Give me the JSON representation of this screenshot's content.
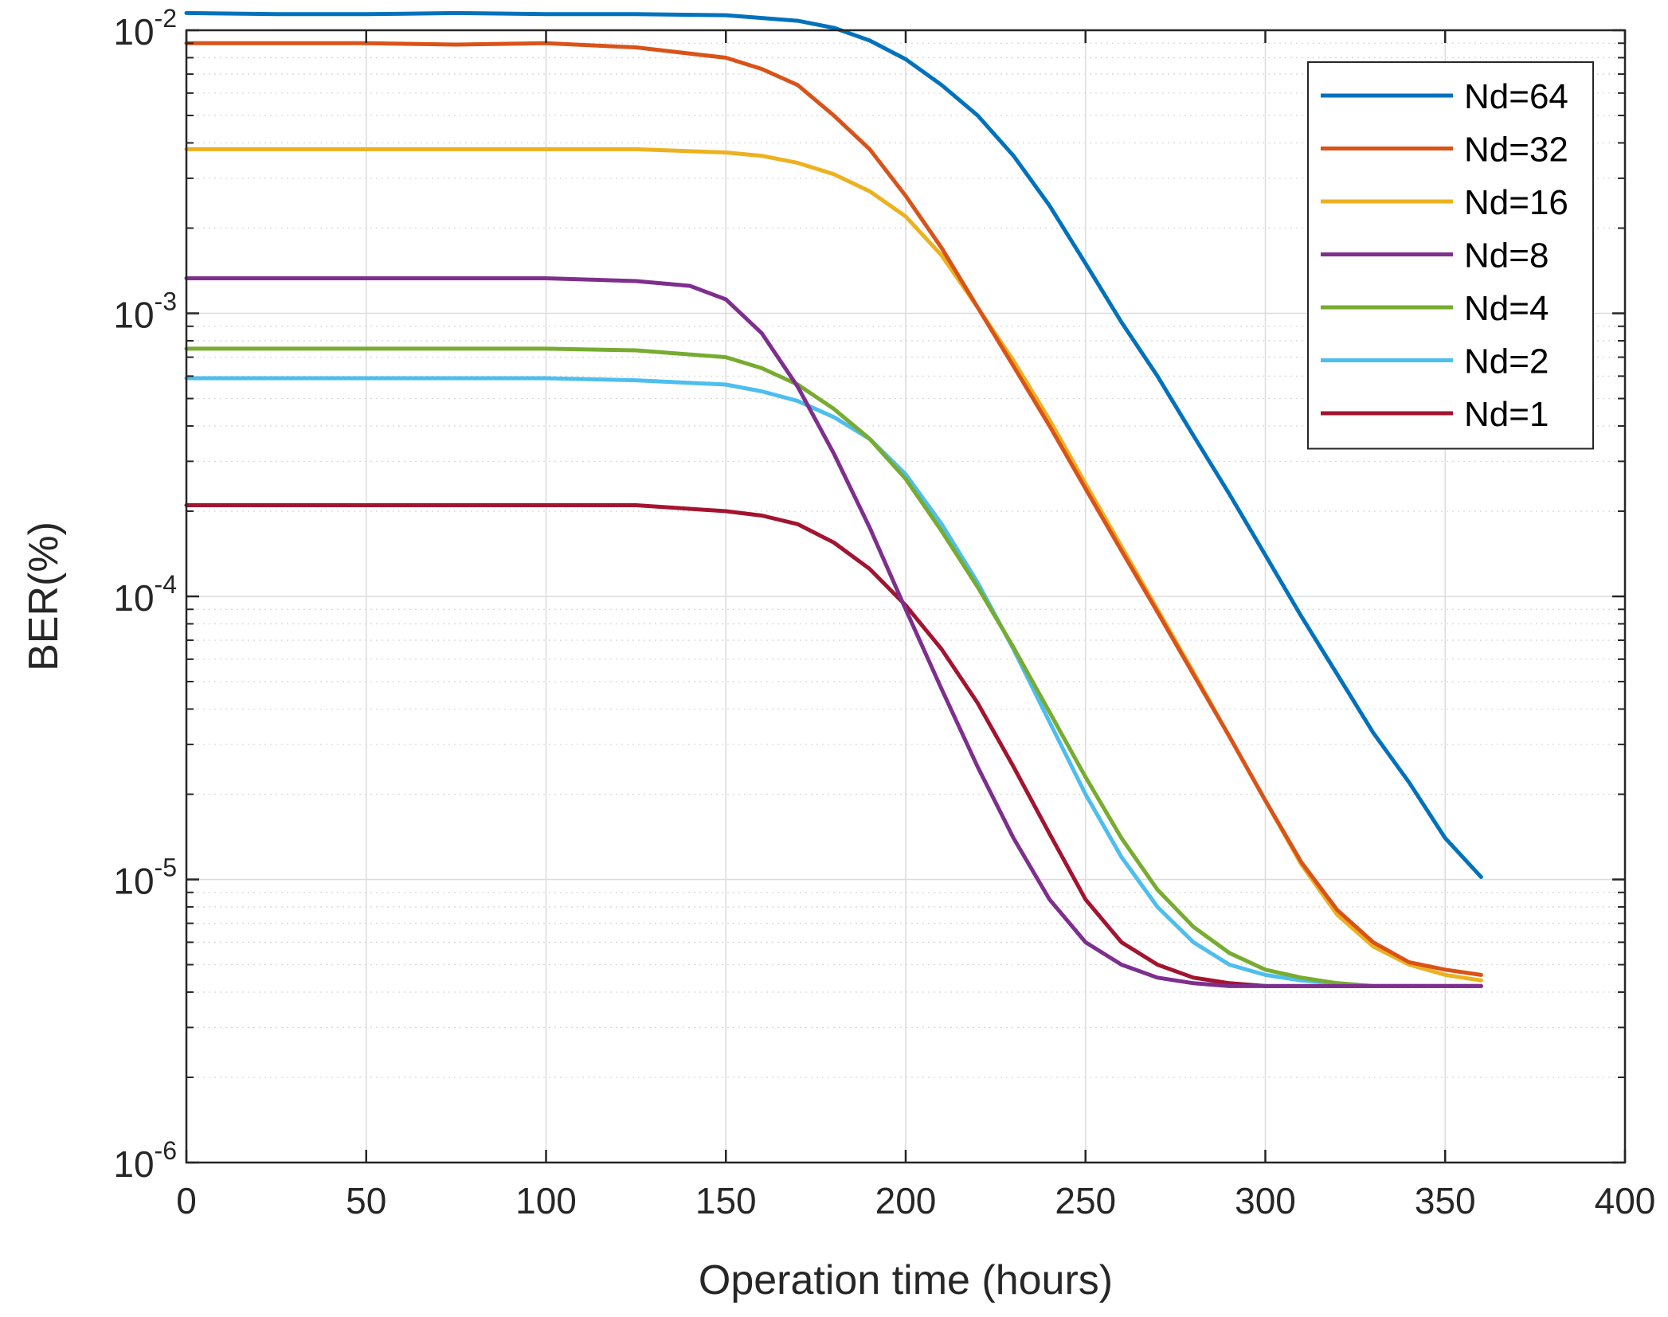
{
  "chart_data": {
    "type": "line",
    "title": "",
    "xlabel": "Operation time (hours)",
    "ylabel": "BER(%)",
    "xscale": "linear",
    "yscale": "log",
    "xlim": [
      0,
      400
    ],
    "ylim": [
      1e-06,
      0.01
    ],
    "xticks": [
      0,
      50,
      100,
      150,
      200,
      250,
      300,
      350,
      400
    ],
    "xtick_labels": [
      "0",
      "50",
      "100",
      "150",
      "200",
      "250",
      "300",
      "350",
      "400"
    ],
    "yticks": [
      {
        "value": 1e-06,
        "base": "10",
        "exp": "-6"
      },
      {
        "value": 1e-05,
        "base": "10",
        "exp": "-5"
      },
      {
        "value": 0.0001,
        "base": "10",
        "exp": "-4"
      },
      {
        "value": 0.001,
        "base": "10",
        "exp": "-3"
      },
      {
        "value": 0.01,
        "base": "10",
        "exp": "-2"
      }
    ],
    "grid": true,
    "minor_grid": true,
    "legend_position": "top-right",
    "series": [
      {
        "name": "Nd=64",
        "color": "#0072BD",
        "x": [
          0,
          25,
          50,
          75,
          100,
          125,
          150,
          170,
          180,
          190,
          200,
          210,
          220,
          230,
          240,
          250,
          260,
          270,
          280,
          290,
          300,
          310,
          320,
          330,
          340,
          350,
          360
        ],
        "y": [
          0.0115,
          0.0114,
          0.0114,
          0.0115,
          0.0114,
          0.0114,
          0.0113,
          0.0108,
          0.0102,
          0.0092,
          0.0079,
          0.0064,
          0.005,
          0.0036,
          0.0024,
          0.0015,
          0.00093,
          0.0006,
          0.00037,
          0.00023,
          0.00014,
          8.5e-05,
          5.3e-05,
          3.3e-05,
          2.2e-05,
          1.4e-05,
          1.02e-05
        ]
      },
      {
        "name": "Nd=32",
        "color": "#D95319",
        "x": [
          0,
          25,
          50,
          75,
          100,
          125,
          150,
          160,
          170,
          180,
          190,
          200,
          210,
          220,
          230,
          240,
          250,
          260,
          270,
          280,
          290,
          300,
          310,
          320,
          330,
          340,
          350,
          360
        ],
        "y": [
          0.009,
          0.009,
          0.009,
          0.0089,
          0.009,
          0.0087,
          0.008,
          0.0073,
          0.0064,
          0.005,
          0.0038,
          0.0026,
          0.0017,
          0.00105,
          0.00065,
          0.0004,
          0.00024,
          0.000145,
          8.8e-05,
          5.3e-05,
          3.2e-05,
          1.9e-05,
          1.15e-05,
          7.8e-06,
          6e-06,
          5.1e-06,
          4.8e-06,
          4.6e-06
        ]
      },
      {
        "name": "Nd=16",
        "color": "#EDB120",
        "x": [
          0,
          25,
          50,
          75,
          100,
          125,
          150,
          160,
          170,
          180,
          190,
          200,
          210,
          220,
          230,
          240,
          250,
          260,
          270,
          280,
          290,
          300,
          310,
          320,
          330,
          340,
          350,
          360
        ],
        "y": [
          0.0038,
          0.0038,
          0.0038,
          0.0038,
          0.0038,
          0.0038,
          0.0037,
          0.0036,
          0.0034,
          0.0031,
          0.0027,
          0.0022,
          0.0016,
          0.00105,
          0.00068,
          0.00042,
          0.00025,
          0.00015,
          9e-05,
          5.4e-05,
          3.2e-05,
          1.9e-05,
          1.13e-05,
          7.5e-06,
          5.8e-06,
          5e-06,
          4.6e-06,
          4.4e-06
        ]
      },
      {
        "name": "Nd=8",
        "color": "#7E2F8E",
        "x": [
          0,
          25,
          50,
          75,
          100,
          125,
          140,
          150,
          160,
          170,
          180,
          190,
          200,
          210,
          220,
          230,
          240,
          250,
          260,
          270,
          280,
          290,
          300,
          310,
          320,
          330,
          340,
          350,
          360
        ],
        "y": [
          0.00133,
          0.00133,
          0.00133,
          0.00133,
          0.00133,
          0.0013,
          0.00125,
          0.00112,
          0.00085,
          0.00055,
          0.00032,
          0.000175,
          9e-05,
          4.7e-05,
          2.5e-05,
          1.4e-05,
          8.5e-06,
          6e-06,
          5e-06,
          4.5e-06,
          4.3e-06,
          4.2e-06,
          4.2e-06,
          4.2e-06,
          4.2e-06,
          4.2e-06,
          4.2e-06,
          4.2e-06,
          4.2e-06
        ]
      },
      {
        "name": "Nd=4",
        "color": "#77AC30",
        "x": [
          0,
          25,
          50,
          75,
          100,
          125,
          150,
          160,
          170,
          180,
          190,
          200,
          210,
          220,
          230,
          240,
          250,
          260,
          270,
          280,
          290,
          300,
          310,
          320,
          330,
          340,
          350,
          360
        ],
        "y": [
          0.00075,
          0.00075,
          0.00075,
          0.00075,
          0.00075,
          0.00074,
          0.0007,
          0.00064,
          0.00056,
          0.00046,
          0.00036,
          0.00026,
          0.00017,
          0.000108,
          6.6e-05,
          3.9e-05,
          2.3e-05,
          1.4e-05,
          9.2e-06,
          6.8e-06,
          5.5e-06,
          4.8e-06,
          4.5e-06,
          4.3e-06,
          4.2e-06,
          4.2e-06,
          4.2e-06,
          4.2e-06
        ]
      },
      {
        "name": "Nd=2",
        "color": "#4DBEEE",
        "x": [
          0,
          25,
          50,
          75,
          100,
          125,
          150,
          160,
          170,
          180,
          190,
          200,
          210,
          220,
          230,
          240,
          250,
          260,
          270,
          280,
          290,
          300,
          310,
          320,
          330,
          340,
          350,
          360
        ],
        "y": [
          0.00059,
          0.00059,
          0.00059,
          0.00059,
          0.00059,
          0.00058,
          0.00056,
          0.00053,
          0.00049,
          0.00043,
          0.00036,
          0.00027,
          0.00018,
          0.000112,
          6.5e-05,
          3.6e-05,
          2e-05,
          1.2e-05,
          8e-06,
          6e-06,
          5e-06,
          4.6e-06,
          4.4e-06,
          4.3e-06,
          4.2e-06,
          4.2e-06,
          4.2e-06,
          4.2e-06
        ]
      },
      {
        "name": "Nd=1",
        "color": "#A2142F",
        "x": [
          0,
          25,
          50,
          75,
          100,
          125,
          150,
          160,
          170,
          180,
          190,
          200,
          210,
          220,
          230,
          240,
          250,
          260,
          270,
          280,
          290,
          300,
          310,
          320,
          330,
          340,
          350,
          360
        ],
        "y": [
          0.00021,
          0.00021,
          0.00021,
          0.00021,
          0.00021,
          0.00021,
          0.0002,
          0.000193,
          0.00018,
          0.000155,
          0.000125,
          9.3e-05,
          6.5e-05,
          4.2e-05,
          2.5e-05,
          1.45e-05,
          8.5e-06,
          6e-06,
          5e-06,
          4.5e-06,
          4.3e-06,
          4.2e-06,
          4.2e-06,
          4.2e-06,
          4.2e-06,
          4.2e-06,
          4.2e-06,
          4.2e-06
        ]
      }
    ]
  }
}
